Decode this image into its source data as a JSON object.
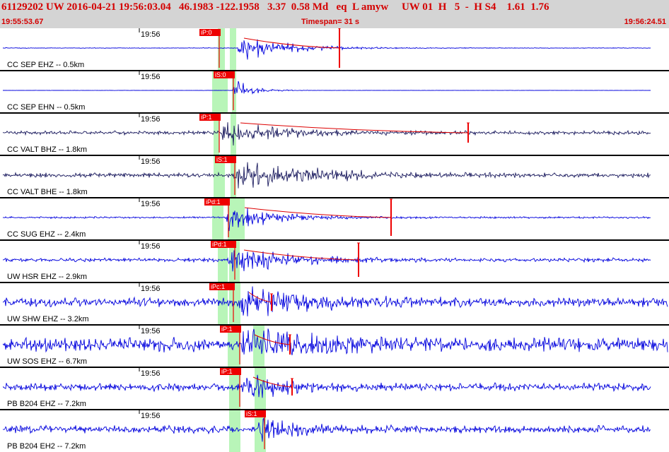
{
  "header": {
    "summary": "61129202 UW 2016-04-21 19:56:03.04   46.1983 -122.1958   3.37  0.58 Md   eq  L amyw     UW 01  H   5  -  H S4    1.61  1.76",
    "start_time": "19:55:53.67",
    "timespan": "Timespan=  31 s",
    "end_time": "19:56:24.51"
  },
  "colors": {
    "header_bg": "#d4d4d4",
    "header_text": "#d40000",
    "trace_blue": "#0000dd",
    "trace_dark": "#1a1a5e",
    "pick_red": "#ee0000",
    "window_green": "#b8f5b8",
    "trace_red": "#dd0000"
  },
  "tick_label": "19:56",
  "traces": [
    {
      "label": "CC SEP EHZ -- 0.5km",
      "color": "blue",
      "noise": 0.5,
      "amp": 24,
      "onset": 335,
      "decay": 60,
      "secondary": 0,
      "pick": "iP:0",
      "pickX": 282,
      "greens": [
        [
          308,
          318
        ],
        [
          325,
          334
        ]
      ],
      "spike": 480,
      "spikeLen": 28,
      "env": [
        345,
        480
      ],
      "dur": 1
    },
    {
      "label": "CC SEP EHN -- 0.5km",
      "color": "blue",
      "noise": 0.2,
      "amp": 22,
      "onset": 328,
      "decay": 22,
      "secondary": 0,
      "pick": "iS:0",
      "pickX": 302,
      "greens": [
        [
          300,
          322
        ],
        [
          328,
          334
        ]
      ],
      "spike": 0,
      "spikeLen": 0,
      "env": [],
      "dur": 0.5
    },
    {
      "label": "CC VALT BHZ -- 1.8km",
      "color": "dark",
      "noise": 3,
      "amp": 20,
      "onset": 312,
      "decay": 70,
      "secondary": 0,
      "pick": "iP:1",
      "pickX": 282,
      "greens": [
        [
          302,
          310
        ],
        [
          326,
          334
        ]
      ],
      "spike": 662,
      "spikeLen": 14,
      "env": [
        340,
        662
      ],
      "dur": 1
    },
    {
      "label": "CC VALT BHE -- 1.8km",
      "color": "dark",
      "noise": 3.5,
      "amp": 24,
      "onset": 330,
      "decay": 85,
      "secondary": 470,
      "pick": "iS:1",
      "pickX": 304,
      "greens": [
        [
          302,
          318
        ],
        [
          326,
          334
        ]
      ],
      "spike": 0,
      "spikeLen": 0,
      "env": [],
      "dur": 1
    },
    {
      "label": "CC SUG EHZ -- 2.4km",
      "color": "blue",
      "noise": 1.5,
      "amp": 26,
      "onset": 316,
      "decay": 55,
      "secondary": 0,
      "pick": "iPd:1",
      "pickX": 289,
      "greens": [
        [
          300,
          316
        ],
        [
          322,
          346
        ]
      ],
      "spike": 553,
      "spikeLen": 26,
      "env": [
        346,
        553
      ],
      "dur": 1
    },
    {
      "label": "UW HSR EHZ -- 2.9km",
      "color": "blue",
      "noise": 3,
      "amp": 25,
      "onset": 322,
      "decay": 70,
      "secondary": 0,
      "pick": "iPd:1",
      "pickX": 298,
      "greens": [
        [
          308,
          322
        ],
        [
          324,
          339
        ]
      ],
      "spike": 507,
      "spikeLen": 24,
      "env": [
        345,
        507
      ],
      "dur": 1
    },
    {
      "label": "UW SHW EHZ -- 3.2km",
      "color": "blue",
      "noise": 7,
      "amp": 24,
      "onset": 336,
      "decay": 90,
      "secondary": 0,
      "pick": "iPc:1",
      "pickX": 296,
      "greens": [
        [
          308,
          322
        ],
        [
          324,
          340
        ]
      ],
      "spike": 384,
      "spikeLen": 12,
      "env": [
        352,
        385
      ],
      "dur": 1
    },
    {
      "label": "UW SOS EHZ -- 6.7km",
      "color": "blue",
      "noise": 11,
      "amp": 22,
      "onset": 341,
      "decay": 90,
      "secondary": 0,
      "pick": "iP:1",
      "pickX": 311,
      "greens": [
        [
          322,
          340
        ],
        [
          358,
          374
        ]
      ],
      "spike": 410,
      "spikeLen": 14,
      "env": [
        360,
        410
      ],
      "dur": 1
    },
    {
      "label": "PB B204 EHZ -- 7.2km",
      "color": "blue",
      "noise": 6,
      "amp": 22,
      "onset": 341,
      "decay": 45,
      "secondary": 0,
      "pick": "iP:1",
      "pickX": 311,
      "greens": [
        [
          324,
          340
        ],
        [
          360,
          376
        ]
      ],
      "spike": 413,
      "spikeLen": 12,
      "env": [
        358,
        413
      ],
      "dur": 1
    },
    {
      "label": "PB B204 EH2 -- 7.2km",
      "color": "blue",
      "noise": 6,
      "amp": 20,
      "onset": 362,
      "decay": 45,
      "secondary": 0,
      "pick": "iS:1",
      "pickX": 346,
      "greens": [
        [
          324,
          340
        ],
        [
          360,
          376
        ]
      ],
      "spike": 0,
      "spikeLen": 0,
      "env": [],
      "dur": 1
    }
  ]
}
